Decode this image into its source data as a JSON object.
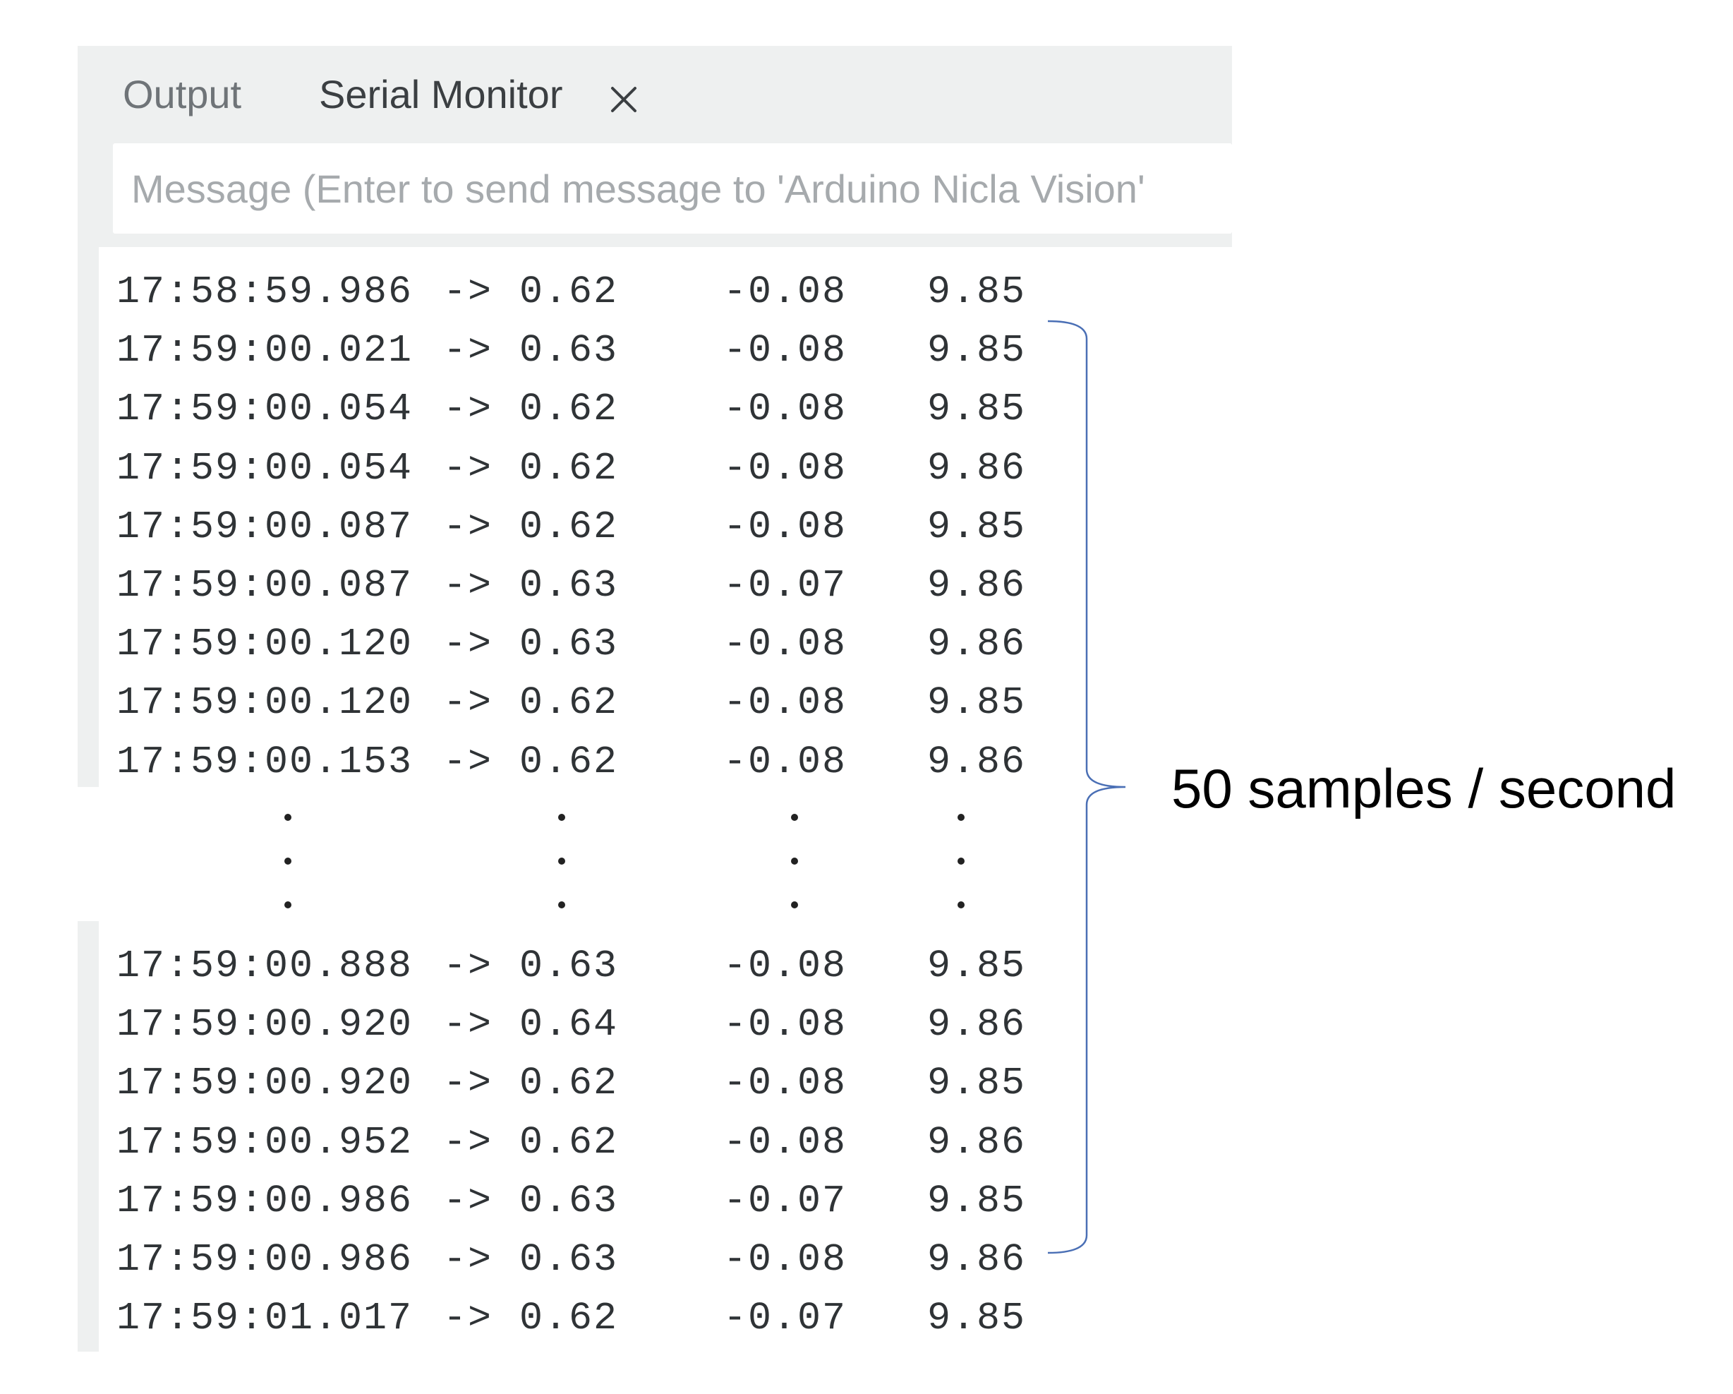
{
  "tabs": [
    {
      "label": "Output"
    },
    {
      "label": "Serial Monitor"
    }
  ],
  "message_input": {
    "placeholder": "Message (Enter to send message to 'Arduino Nicla Vision' ",
    "value": ""
  },
  "serial_top": [
    {
      "time": "17:58:59.986",
      "arrow": "->",
      "x": "0.62",
      "y": "-0.08",
      "z": "9.85"
    },
    {
      "time": "17:59:00.021",
      "arrow": "->",
      "x": "0.63",
      "y": "-0.08",
      "z": "9.85"
    },
    {
      "time": "17:59:00.054",
      "arrow": "->",
      "x": "0.62",
      "y": "-0.08",
      "z": "9.85"
    },
    {
      "time": "17:59:00.054",
      "arrow": "->",
      "x": "0.62",
      "y": "-0.08",
      "z": "9.86"
    },
    {
      "time": "17:59:00.087",
      "arrow": "->",
      "x": "0.62",
      "y": "-0.08",
      "z": "9.85"
    },
    {
      "time": "17:59:00.087",
      "arrow": "->",
      "x": "0.63",
      "y": "-0.07",
      "z": "9.86"
    },
    {
      "time": "17:59:00.120",
      "arrow": "->",
      "x": "0.63",
      "y": "-0.08",
      "z": "9.86"
    },
    {
      "time": "17:59:00.120",
      "arrow": "->",
      "x": "0.62",
      "y": "-0.08",
      "z": "9.85"
    },
    {
      "time": "17:59:00.153",
      "arrow": "->",
      "x": "0.62",
      "y": "-0.08",
      "z": "9.86"
    }
  ],
  "serial_bottom": [
    {
      "time": "17:59:00.888",
      "arrow": "->",
      "x": "0.63",
      "y": "-0.08",
      "z": "9.85"
    },
    {
      "time": "17:59:00.920",
      "arrow": "->",
      "x": "0.64",
      "y": "-0.08",
      "z": "9.86"
    },
    {
      "time": "17:59:00.920",
      "arrow": "->",
      "x": "0.62",
      "y": "-0.08",
      "z": "9.85"
    },
    {
      "time": "17:59:00.952",
      "arrow": "->",
      "x": "0.62",
      "y": "-0.08",
      "z": "9.86"
    },
    {
      "time": "17:59:00.986",
      "arrow": "->",
      "x": "0.63",
      "y": "-0.07",
      "z": "9.85"
    },
    {
      "time": "17:59:00.986",
      "arrow": "->",
      "x": "0.63",
      "y": "-0.08",
      "z": "9.86"
    },
    {
      "time": "17:59:01.017",
      "arrow": "->",
      "x": "0.62",
      "y": "-0.07",
      "z": "9.85"
    }
  ],
  "annotation": "50 samples / second",
  "icons": {
    "close": "close-icon"
  },
  "colors": {
    "panel_bg": "#eef0f0",
    "tab_inactive": "#6f7478",
    "tab_active": "#3b3f42",
    "placeholder": "#a6aaad",
    "monospace_text": "#2f3336",
    "brace": "#4a6fb5"
  }
}
